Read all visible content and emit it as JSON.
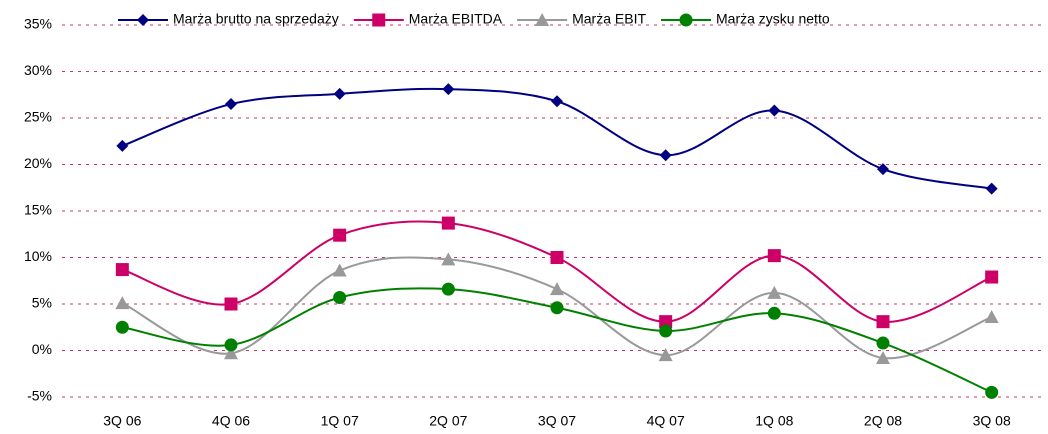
{
  "chart_data": {
    "type": "line",
    "categories": [
      "3Q 06",
      "4Q 06",
      "1Q 07",
      "2Q 07",
      "3Q 07",
      "4Q 07",
      "1Q 08",
      "2Q 08",
      "3Q 08"
    ],
    "series": [
      {
        "name": "Marża brutto na sprzedaży",
        "color": "#000080",
        "marker": "diamond",
        "values": [
          22.0,
          26.5,
          27.6,
          28.1,
          26.8,
          21.0,
          25.8,
          19.5,
          17.4
        ]
      },
      {
        "name": "Marża EBITDA",
        "color": "#cc0066",
        "marker": "square",
        "values": [
          8.7,
          5.0,
          12.4,
          13.7,
          10.0,
          3.1,
          10.2,
          3.1,
          7.9
        ]
      },
      {
        "name": "Marża EBIT",
        "color": "#999999",
        "marker": "triangle",
        "values": [
          5.1,
          -0.3,
          8.6,
          9.8,
          6.6,
          -0.5,
          6.2,
          -0.8,
          3.6
        ]
      },
      {
        "name": "Marża zysku netto",
        "color": "#008000",
        "marker": "circle",
        "values": [
          2.5,
          0.6,
          5.7,
          6.6,
          4.6,
          2.1,
          4.0,
          0.8,
          -4.5
        ]
      }
    ],
    "ylim": [
      -5,
      35
    ],
    "yticks": [
      {
        "value": -5,
        "label": "-5%"
      },
      {
        "value": 0,
        "label": "0%"
      },
      {
        "value": 5,
        "label": "5%"
      },
      {
        "value": 10,
        "label": "10%"
      },
      {
        "value": 15,
        "label": "15%"
      },
      {
        "value": 20,
        "label": "20%"
      },
      {
        "value": 25,
        "label": "25%"
      },
      {
        "value": 30,
        "label": "30%"
      },
      {
        "value": 35,
        "label": "35%"
      }
    ],
    "grid": true,
    "legend": "top"
  }
}
